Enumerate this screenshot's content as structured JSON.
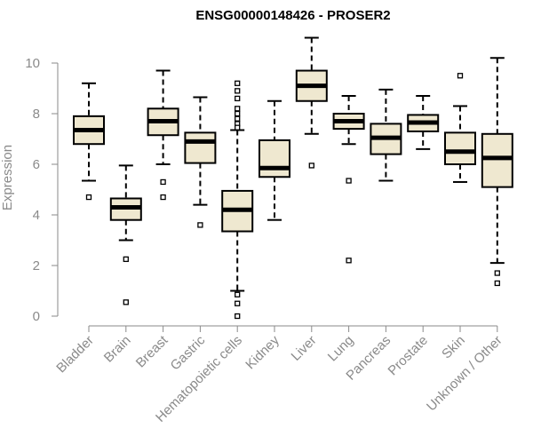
{
  "chart_data": {
    "type": "boxplot",
    "title": "ENSG00000148426 - PROSER2",
    "ylabel": "Expression",
    "ylim": [
      0,
      11
    ],
    "yticks": [
      0,
      2,
      4,
      6,
      8,
      10
    ],
    "colors": {
      "box_fill": "#efe8d0",
      "box_stroke": "#000000",
      "axis": "#8a8a8a"
    },
    "categories": [
      "Bladder",
      "Brain",
      "Breast",
      "Gastric",
      "Hematopoietic cells",
      "Kidney",
      "Liver",
      "Lung",
      "Pancreas",
      "Prostate",
      "Skin",
      "Unknown / Other"
    ],
    "boxes": [
      {
        "q1": 6.8,
        "median": 7.35,
        "q3": 7.9,
        "whisker_low": 5.35,
        "whisker_high": 9.2,
        "outliers": [
          4.7
        ]
      },
      {
        "q1": 3.8,
        "median": 4.3,
        "q3": 4.65,
        "whisker_low": 3.0,
        "whisker_high": 5.95,
        "outliers": [
          2.25,
          0.55
        ]
      },
      {
        "q1": 7.15,
        "median": 7.7,
        "q3": 8.2,
        "whisker_low": 6.0,
        "whisker_high": 9.7,
        "outliers": [
          5.3,
          4.7
        ]
      },
      {
        "q1": 6.05,
        "median": 6.9,
        "q3": 7.25,
        "whisker_low": 4.4,
        "whisker_high": 8.65,
        "outliers": [
          3.6
        ]
      },
      {
        "q1": 3.35,
        "median": 4.2,
        "q3": 4.95,
        "whisker_low": 1.0,
        "whisker_high": 7.35,
        "outliers": [
          9.2,
          8.9,
          8.6,
          8.2,
          8.0,
          7.8,
          7.6,
          7.45,
          0.85,
          0.5,
          0.0
        ]
      },
      {
        "q1": 5.5,
        "median": 5.85,
        "q3": 6.95,
        "whisker_low": 3.8,
        "whisker_high": 8.5,
        "outliers": []
      },
      {
        "q1": 8.5,
        "median": 9.1,
        "q3": 9.7,
        "whisker_low": 7.2,
        "whisker_high": 11.0,
        "outliers": [
          5.95
        ]
      },
      {
        "q1": 7.4,
        "median": 7.7,
        "q3": 8.0,
        "whisker_low": 6.8,
        "whisker_high": 8.7,
        "outliers": [
          5.35,
          2.2
        ]
      },
      {
        "q1": 6.4,
        "median": 7.05,
        "q3": 7.6,
        "whisker_low": 5.35,
        "whisker_high": 8.95,
        "outliers": []
      },
      {
        "q1": 7.3,
        "median": 7.65,
        "q3": 7.95,
        "whisker_low": 6.6,
        "whisker_high": 8.7,
        "outliers": []
      },
      {
        "q1": 6.0,
        "median": 6.5,
        "q3": 7.25,
        "whisker_low": 5.3,
        "whisker_high": 8.3,
        "outliers": [
          9.5
        ]
      },
      {
        "q1": 5.1,
        "median": 6.25,
        "q3": 7.2,
        "whisker_low": 2.1,
        "whisker_high": 10.2,
        "outliers": [
          1.7,
          1.3
        ]
      }
    ]
  }
}
